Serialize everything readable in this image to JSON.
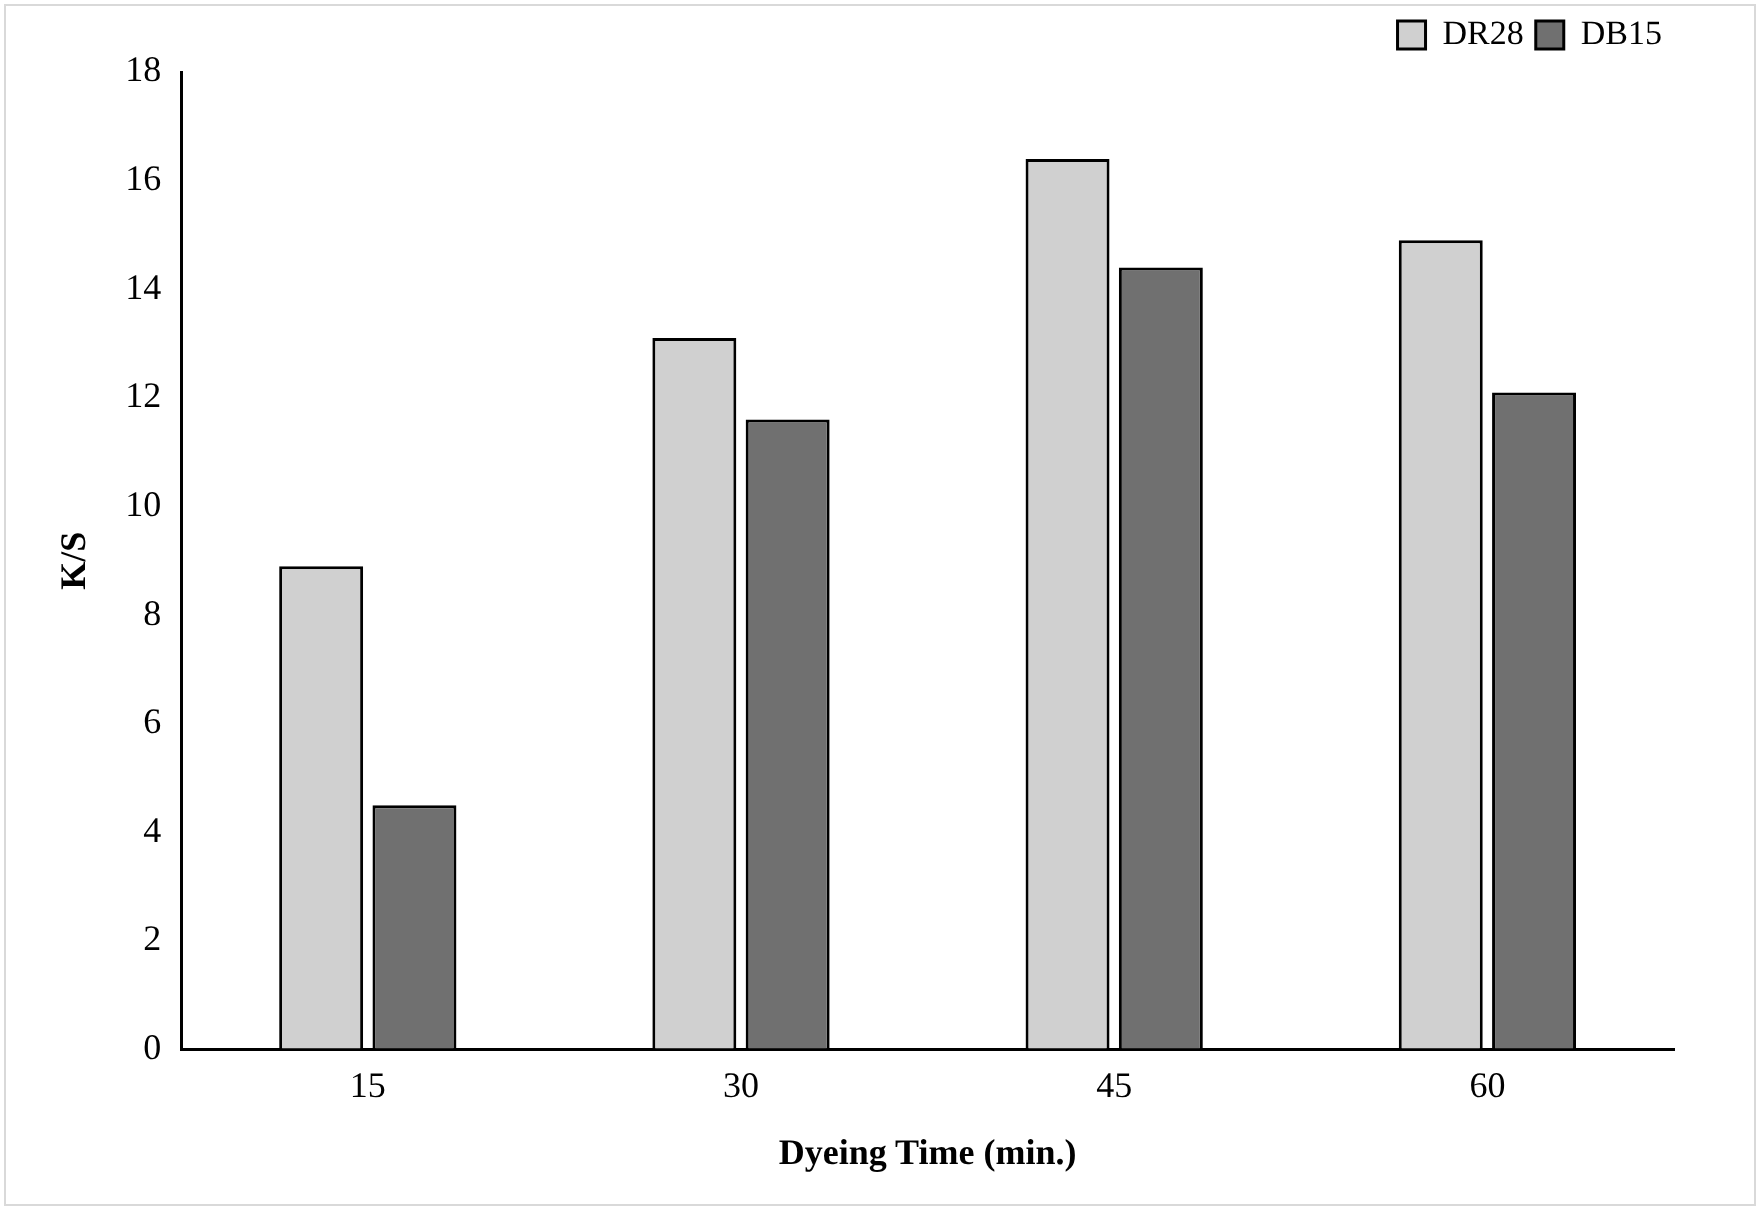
{
  "chart_data": {
    "type": "bar",
    "xlabel": "Dyeing Time (min.)",
    "ylabel": "K/S",
    "categories": [
      "15",
      "30",
      "45",
      "60"
    ],
    "series": [
      {
        "name": "DR28",
        "color": "#d0d0d0",
        "values": [
          8.9,
          13.1,
          16.4,
          14.9
        ]
      },
      {
        "name": "DB15",
        "color": "#707070",
        "values": [
          4.5,
          11.6,
          14.4,
          12.1
        ]
      }
    ],
    "ylim": [
      0,
      18
    ],
    "yticks": [
      0,
      2,
      4,
      6,
      8,
      10,
      12,
      14,
      16,
      18
    ],
    "grid": false,
    "legend": "top right"
  }
}
